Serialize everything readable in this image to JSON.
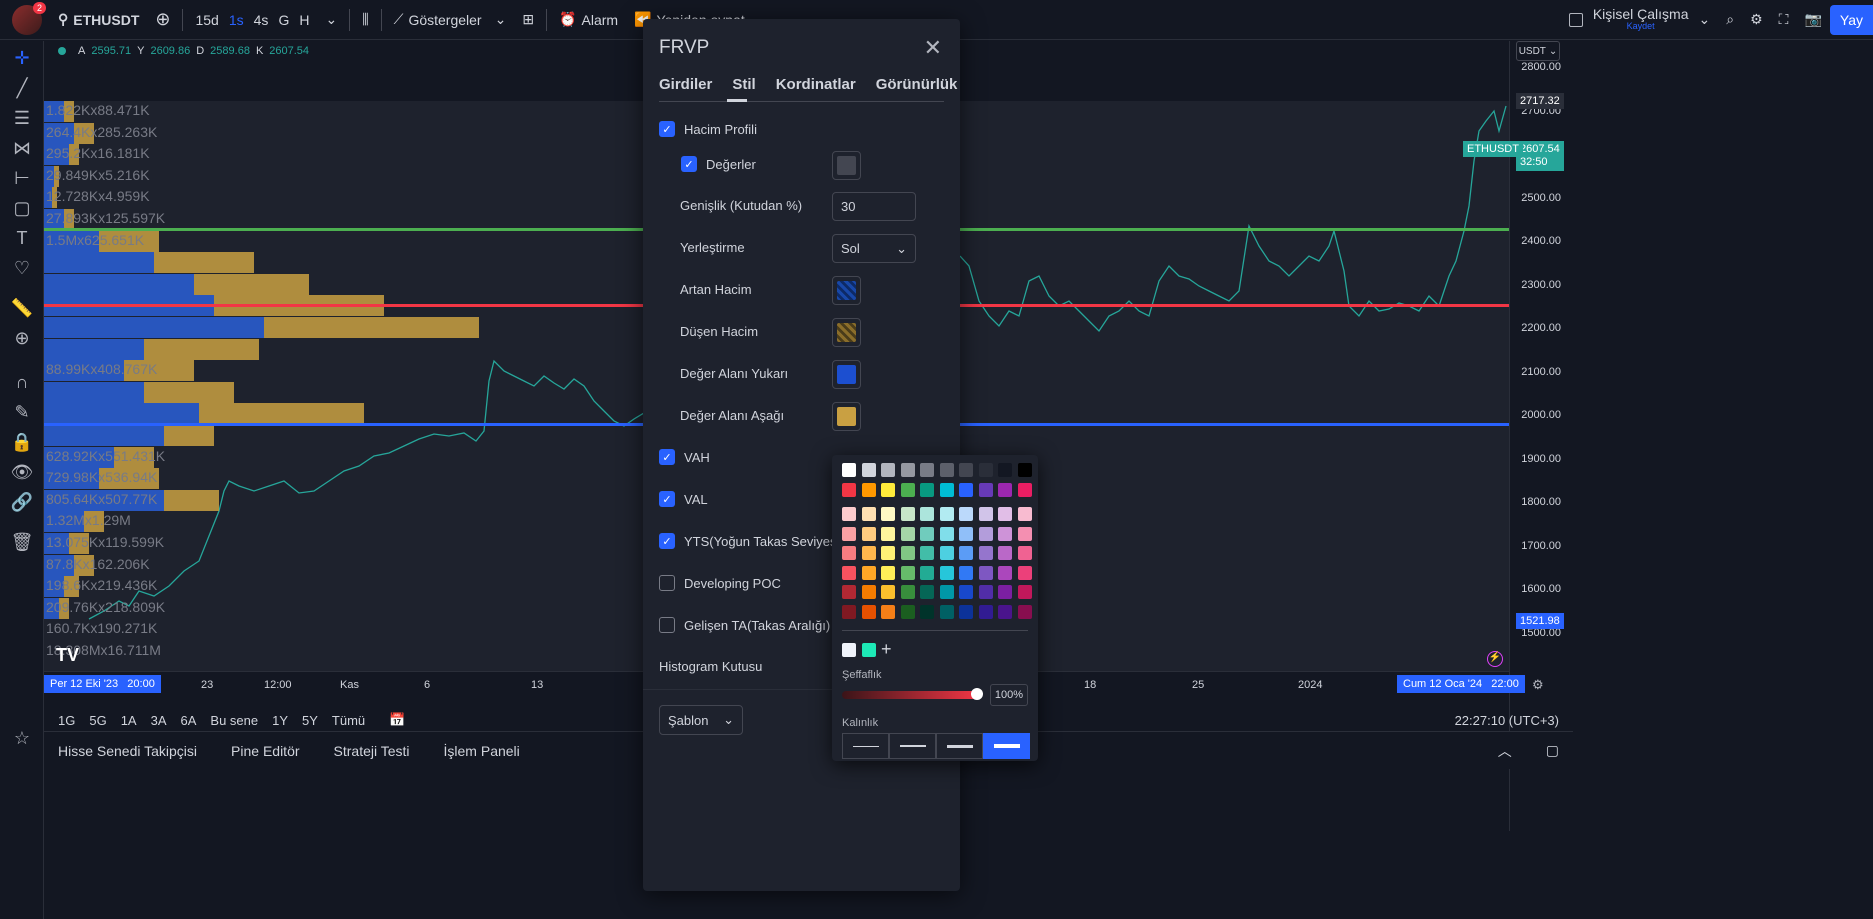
{
  "topbar": {
    "badge": "2",
    "symbol": "ETHUSDT",
    "intervals": [
      "15d",
      "1s",
      "4s",
      "G",
      "H"
    ],
    "active_interval": "1s",
    "indicators": "Göstergeler",
    "alarm": "Alarm",
    "replay": "Yeniden oynat",
    "workspace": "Kişisel Çalışma",
    "workspace_sub": "Kaydet",
    "publish": "Yay"
  },
  "legend": {
    "o_label": "A",
    "o": "2595.71",
    "h_label": "Y",
    "h": "2609.86",
    "l_label": "D",
    "l": "2589.68",
    "c_label": "K",
    "c": "2607.54"
  },
  "volume_profile_labels": [
    "1.822Kx88.471K",
    "264.4Kx285.263K",
    "295.2Kx16.181K",
    "29.849Kx5.216K",
    "12.728Kx4.959K",
    "27.893Kx125.597K",
    "1.5Mx625.651K",
    "",
    "",
    "",
    "",
    "",
    "88.99Kx408.767K",
    "",
    "",
    "",
    "628.92Kx551.431K",
    "729.98Kx536.94K",
    "805.64Kx507.77K",
    "1.32Mx1.29M",
    "13.075Kx119.599K",
    "87.8Kx162.206K",
    "198.6Kx219.436K",
    "209.76Kx218.809K",
    "160.7Kx190.271K",
    "18.308Mx16.711M"
  ],
  "price_axis": {
    "currency": "USDT",
    "labels": [
      "2800.00",
      "2700.00",
      "2600.00",
      "2500.00",
      "2400.00",
      "2300.00",
      "2200.00",
      "2100.00",
      "2000.00",
      "1900.00",
      "1800.00",
      "1700.00",
      "1600.00",
      "1500.00"
    ],
    "high_tag": "2717.32",
    "sym_tag": "ETHUSDT",
    "last_tag": "2607.54",
    "countdown": "32:50",
    "low_tag": "1521.98"
  },
  "time_axis": {
    "start": "Per 12 Eki '23   20:00",
    "labels": [
      "23",
      "12:00",
      "Kas",
      "6",
      "13",
      "18",
      "25",
      "2024"
    ],
    "end": "Cum 12 Oca '24   22:00"
  },
  "periods": [
    "1G",
    "5G",
    "1A",
    "3A",
    "6A",
    "Bu sene",
    "1Y",
    "5Y",
    "Tümü"
  ],
  "clock": "22:27:10 (UTC+3)",
  "bottom_tabs": [
    "Hisse Senedi Takipçisi",
    "Pine Editör",
    "Strateji Testi",
    "İşlem Paneli"
  ],
  "dialog": {
    "title": "FRVP",
    "tabs": [
      "Girdiler",
      "Stil",
      "Kordinatlar",
      "Görünürlük"
    ],
    "active_tab": "Stil",
    "volume_profile": "Hacim Profili",
    "values": "Değerler",
    "width_label": "Genişlik (Kutudan %)",
    "width_value": "30",
    "placement_label": "Yerleştirme",
    "placement_value": "Sol",
    "up_volume": "Artan Hacim",
    "down_volume": "Düşen Hacim",
    "va_up": "Değer Alanı Yukarı",
    "va_down": "Değer Alanı Aşağı",
    "vah": "VAH",
    "val": "VAL",
    "poc": "YTS(Yoğun Takas Seviyesi)",
    "dev_poc": "Developing POC",
    "dev_va": "Gelişen TA(Takas Aralığı)",
    "hist_box": "Histogram Kutusu",
    "template": "Şablon"
  },
  "palette": {
    "opacity_label": "Şeffaflık",
    "opacity_value": "100%",
    "thickness_label": "Kalınlık"
  },
  "colors": {
    "accent": "#2962ff",
    "up": "#26a69a",
    "down": "#ef5350",
    "vp_blue": "#2a5fd8",
    "vp_gold": "#c9a042",
    "vah_line": "#4caf50",
    "poc_line": "#f23645",
    "val_line": "#2962ff"
  }
}
